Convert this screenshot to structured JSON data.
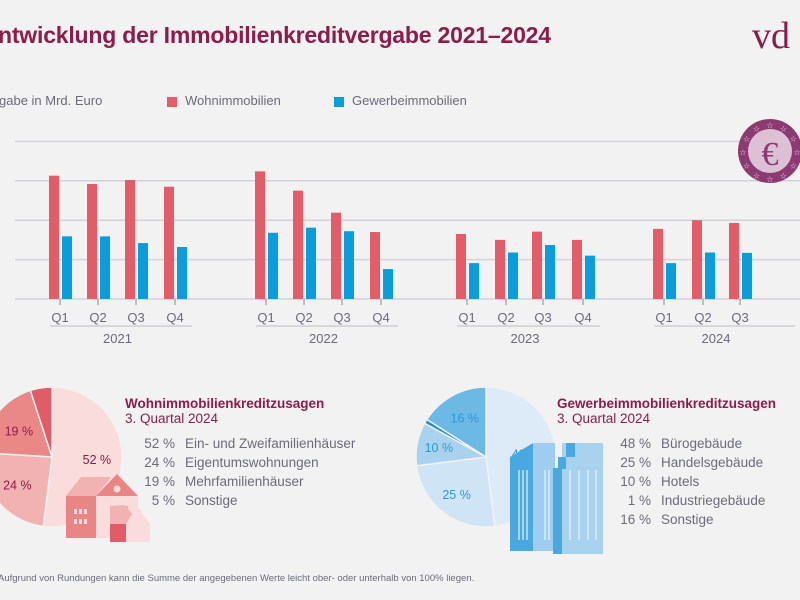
{
  "header": {
    "title": "ntwicklung der Immobilienkreditvergabe 2021–2024",
    "logo_text": "vdp"
  },
  "legend": {
    "unit_label": "gabe in Mrd. Euro"
  },
  "colors": {
    "wohn": "#e35d68",
    "gewerbe": "#0a9ddb",
    "accent": "#8b1d48"
  },
  "chart_data": [
    {
      "type": "bar",
      "title": "",
      "xlabel": "",
      "ylabel": "gabe in Mrd. Euro",
      "note": "y values read in gridline units; axis tick labels not visible",
      "ylim": [
        0,
        4
      ],
      "grid": true,
      "legend_position": "top",
      "groups": [
        {
          "year": "2021",
          "quarters": [
            "Q1",
            "Q2",
            "Q3",
            "Q4"
          ]
        },
        {
          "year": "2022",
          "quarters": [
            "Q1",
            "Q2",
            "Q3",
            "Q4"
          ]
        },
        {
          "year": "2023",
          "quarters": [
            "Q1",
            "Q2",
            "Q3",
            "Q4"
          ]
        },
        {
          "year": "2024",
          "quarters": [
            "Q1",
            "Q2",
            "Q3"
          ]
        }
      ],
      "series": [
        {
          "name": "Wohnimmobilien",
          "values": [
            3.13,
            2.92,
            3.02,
            2.85,
            3.24,
            2.75,
            2.19,
            1.7,
            1.65,
            1.5,
            1.71,
            1.5,
            1.78,
            2.0,
            1.93
          ]
        },
        {
          "name": "Gewerbeimmobilien",
          "values": [
            1.59,
            1.59,
            1.42,
            1.32,
            1.68,
            1.81,
            1.72,
            0.76,
            0.91,
            1.18,
            1.37,
            1.1,
            0.91,
            1.18,
            1.17
          ]
        }
      ]
    },
    {
      "type": "pie",
      "title": "Wohnimmobilienkreditzusagen",
      "subtitle": "3. Quartal 2024",
      "slices": [
        {
          "label": "Ein- und Zweifamilienhäuser",
          "value": 52,
          "pct": "52 %",
          "color": "#fadcdc"
        },
        {
          "label": "Eigentumswohnungen",
          "value": 24,
          "pct": "24 %",
          "color": "#f2b2b2"
        },
        {
          "label": "Mehrfamilienhäuser",
          "value": 19,
          "pct": "19 %",
          "color": "#ea8888"
        },
        {
          "label": "Sonstige",
          "value": 5,
          "pct": "5 %",
          "color": "#e05c68"
        }
      ]
    },
    {
      "type": "pie",
      "title": "Gewerbeimmobilienkreditzusagen",
      "subtitle": "3. Quartal 2024",
      "slices": [
        {
          "label": "Bürogebäude",
          "value": 48,
          "pct": "48 %",
          "color": "#dcebf7"
        },
        {
          "label": "Handelsgebäude",
          "value": 25,
          "pct": "25 %",
          "color": "#cfe4f5"
        },
        {
          "label": "Hotels",
          "value": 10,
          "pct": "10 %",
          "color": "#a9d2ef"
        },
        {
          "label": "Industriegebäude",
          "value": 1,
          "pct": "1 %",
          "color": "#1a8fd0"
        },
        {
          "label": "Sonstige",
          "value": 16,
          "pct": "16 %",
          "color": "#6db9e6"
        }
      ]
    }
  ],
  "footnote": "Aufgrund von Rundungen kann die Summe der angegebenen Werte leicht ober- oder unterhalb von 100% liegen."
}
